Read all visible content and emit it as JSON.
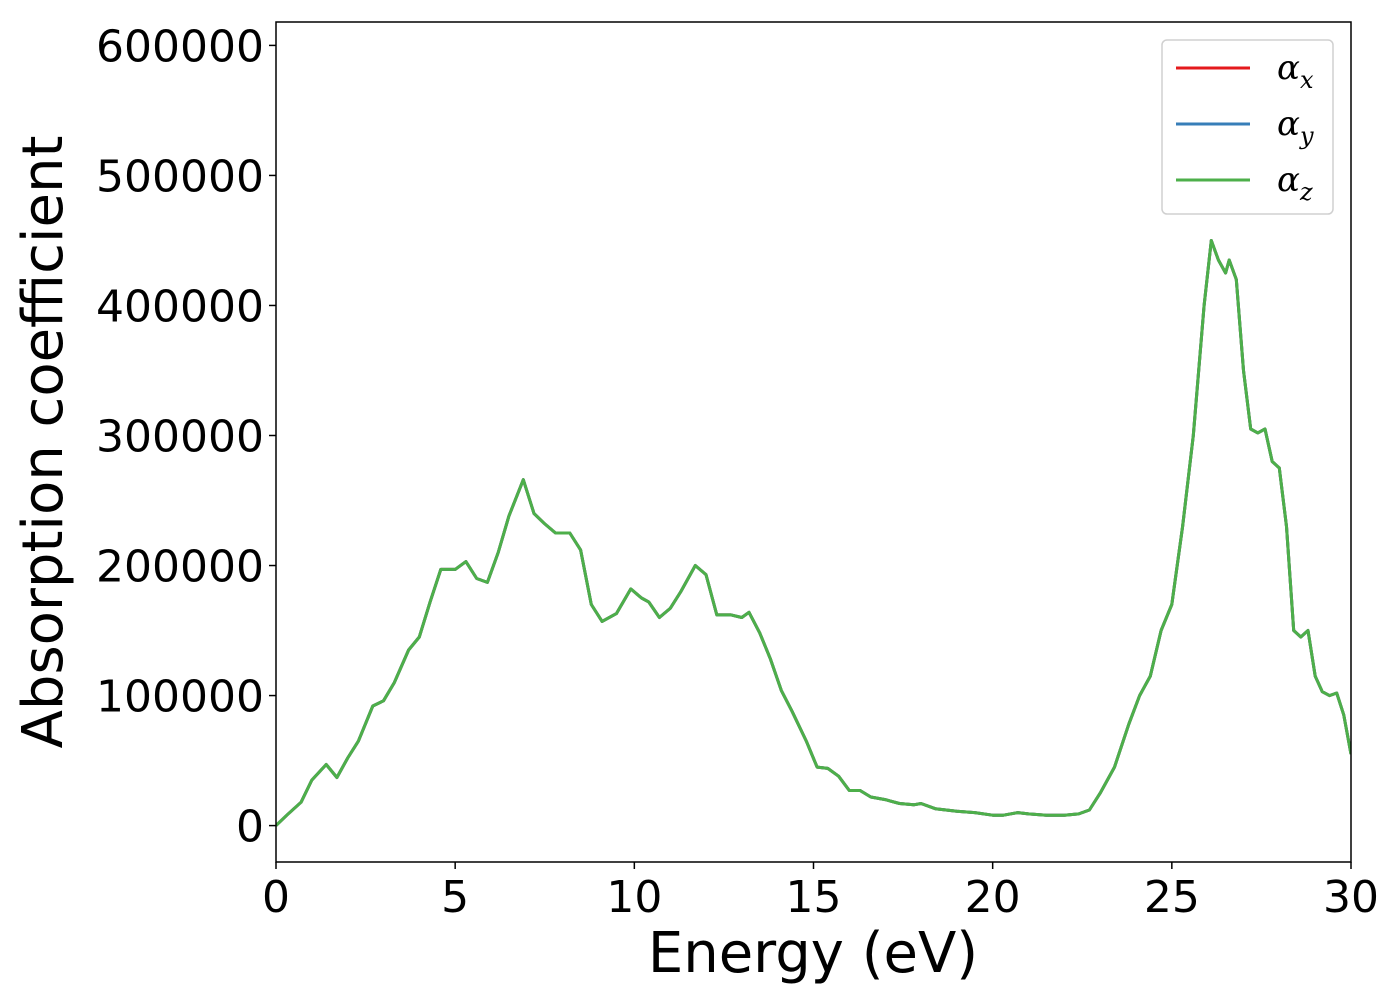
{
  "chart_data": {
    "type": "line",
    "title": "",
    "xlabel": "Energy (eV)",
    "ylabel": "Absorption coefficient",
    "xlim": [
      0,
      30
    ],
    "ylim": [
      -28000,
      618000
    ],
    "xticks": [
      0,
      5,
      10,
      15,
      20,
      25,
      30
    ],
    "yticks": [
      0,
      100000,
      200000,
      300000,
      400000,
      500000,
      600000
    ],
    "grid": false,
    "legend_position": "top-right",
    "series": [
      {
        "name": "α_x",
        "sym": "α",
        "sub": "x",
        "color": "#e41a1c",
        "x": [
          0,
          0.3,
          0.7,
          1.0,
          1.4,
          1.7,
          2.0,
          2.3,
          2.7,
          3.0,
          3.3,
          3.7,
          4.0,
          4.3,
          4.6,
          5.0,
          5.3,
          5.6,
          5.9,
          6.2,
          6.5,
          6.9,
          7.2,
          7.5,
          7.8,
          8.2,
          8.5,
          8.8,
          9.1,
          9.5,
          9.9,
          10.2,
          10.4,
          10.7,
          11.0,
          11.3,
          11.7,
          12.0,
          12.3,
          12.7,
          13.0,
          13.2,
          13.5,
          13.8,
          14.1,
          14.4,
          14.8,
          15.1,
          15.4,
          15.7,
          16.0,
          16.3,
          16.6,
          17.0,
          17.4,
          17.8,
          18.0,
          18.4,
          19.0,
          19.5,
          20.0,
          20.3,
          20.7,
          21.0,
          21.5,
          22.0,
          22.4,
          22.7,
          23.0,
          23.4,
          23.8,
          24.1,
          24.4,
          24.7,
          25.0,
          25.3,
          25.6,
          25.9,
          26.1,
          26.3,
          26.5,
          26.6,
          26.8,
          27.0,
          27.2,
          27.4,
          27.6,
          27.8,
          28.0,
          28.2,
          28.4,
          28.6,
          28.8,
          29.0,
          29.2,
          29.4,
          29.6,
          29.8,
          30.0
        ],
        "y": [
          0,
          8000,
          18000,
          35000,
          47000,
          37000,
          52000,
          65000,
          92000,
          96000,
          110000,
          135000,
          145000,
          172000,
          197000,
          197000,
          203000,
          190000,
          187000,
          210000,
          238000,
          266000,
          240000,
          232000,
          225000,
          225000,
          212000,
          170000,
          157000,
          163000,
          182000,
          175000,
          172000,
          160000,
          167000,
          180000,
          200000,
          193000,
          162000,
          162000,
          160000,
          164000,
          148000,
          128000,
          104000,
          88000,
          65000,
          45000,
          44000,
          38000,
          27000,
          27000,
          22000,
          20000,
          17000,
          16000,
          17000,
          13000,
          11000,
          10000,
          8000,
          8000,
          10000,
          9000,
          8000,
          8000,
          9000,
          12000,
          25000,
          45000,
          78000,
          100000,
          115000,
          150000,
          170000,
          230000,
          300000,
          400000,
          450000,
          435000,
          425000,
          435000,
          420000,
          350000,
          305000,
          302000,
          305000,
          280000,
          275000,
          230000,
          150000,
          145000,
          150000,
          115000,
          103000,
          100000,
          102000,
          85000,
          55000
        ]
      },
      {
        "name": "α_y",
        "sym": "α",
        "sub": "y",
        "color": "#377eb8",
        "x": [
          0,
          0.3,
          0.7,
          1.0,
          1.4,
          1.7,
          2.0,
          2.3,
          2.7,
          3.0,
          3.3,
          3.7,
          4.0,
          4.3,
          4.6,
          5.0,
          5.3,
          5.6,
          5.9,
          6.2,
          6.5,
          6.9,
          7.2,
          7.5,
          7.8,
          8.2,
          8.5,
          8.8,
          9.1,
          9.5,
          9.9,
          10.2,
          10.4,
          10.7,
          11.0,
          11.3,
          11.7,
          12.0,
          12.3,
          12.7,
          13.0,
          13.2,
          13.5,
          13.8,
          14.1,
          14.4,
          14.8,
          15.1,
          15.4,
          15.7,
          16.0,
          16.3,
          16.6,
          17.0,
          17.4,
          17.8,
          18.0,
          18.4,
          19.0,
          19.5,
          20.0,
          20.3,
          20.7,
          21.0,
          21.5,
          22.0,
          22.4,
          22.7,
          23.0,
          23.4,
          23.8,
          24.1,
          24.4,
          24.7,
          25.0,
          25.3,
          25.6,
          25.9,
          26.1,
          26.3,
          26.5,
          26.6,
          26.8,
          27.0,
          27.2,
          27.4,
          27.6,
          27.8,
          28.0,
          28.2,
          28.4,
          28.6,
          28.8,
          29.0,
          29.2,
          29.4,
          29.6,
          29.8,
          30.0
        ],
        "y": [
          0,
          8000,
          18000,
          35000,
          47000,
          37000,
          52000,
          65000,
          92000,
          96000,
          110000,
          135000,
          145000,
          172000,
          197000,
          197000,
          203000,
          190000,
          187000,
          210000,
          238000,
          266000,
          240000,
          232000,
          225000,
          225000,
          212000,
          170000,
          157000,
          163000,
          182000,
          175000,
          172000,
          160000,
          167000,
          180000,
          200000,
          193000,
          162000,
          162000,
          160000,
          164000,
          148000,
          128000,
          104000,
          88000,
          65000,
          45000,
          44000,
          38000,
          27000,
          27000,
          22000,
          20000,
          17000,
          16000,
          17000,
          13000,
          11000,
          10000,
          8000,
          8000,
          10000,
          9000,
          8000,
          8000,
          9000,
          12000,
          25000,
          45000,
          78000,
          100000,
          115000,
          150000,
          170000,
          230000,
          300000,
          400000,
          450000,
          435000,
          425000,
          435000,
          420000,
          350000,
          305000,
          302000,
          305000,
          280000,
          275000,
          230000,
          150000,
          145000,
          150000,
          115000,
          103000,
          100000,
          102000,
          85000,
          55000
        ]
      },
      {
        "name": "α_z",
        "sym": "α",
        "sub": "z",
        "color": "#4daf4a",
        "x": [
          0,
          0.3,
          0.7,
          1.0,
          1.4,
          1.7,
          2.0,
          2.3,
          2.7,
          3.0,
          3.3,
          3.7,
          4.0,
          4.3,
          4.6,
          5.0,
          5.3,
          5.6,
          5.9,
          6.2,
          6.5,
          6.9,
          7.2,
          7.5,
          7.8,
          8.2,
          8.5,
          8.8,
          9.1,
          9.5,
          9.9,
          10.2,
          10.4,
          10.7,
          11.0,
          11.3,
          11.7,
          12.0,
          12.3,
          12.7,
          13.0,
          13.2,
          13.5,
          13.8,
          14.1,
          14.4,
          14.8,
          15.1,
          15.4,
          15.7,
          16.0,
          16.3,
          16.6,
          17.0,
          17.4,
          17.8,
          18.0,
          18.4,
          19.0,
          19.5,
          20.0,
          20.3,
          20.7,
          21.0,
          21.5,
          22.0,
          22.4,
          22.7,
          23.0,
          23.4,
          23.8,
          24.1,
          24.4,
          24.7,
          25.0,
          25.3,
          25.6,
          25.9,
          26.1,
          26.3,
          26.5,
          26.6,
          26.8,
          27.0,
          27.2,
          27.4,
          27.6,
          27.8,
          28.0,
          28.2,
          28.4,
          28.6,
          28.8,
          29.0,
          29.2,
          29.4,
          29.6,
          29.8,
          30.0
        ],
        "y": [
          0,
          8000,
          18000,
          35000,
          47000,
          37000,
          52000,
          65000,
          92000,
          96000,
          110000,
          135000,
          145000,
          172000,
          197000,
          197000,
          203000,
          190000,
          187000,
          210000,
          238000,
          266000,
          240000,
          232000,
          225000,
          225000,
          212000,
          170000,
          157000,
          163000,
          182000,
          175000,
          172000,
          160000,
          167000,
          180000,
          200000,
          193000,
          162000,
          162000,
          160000,
          164000,
          148000,
          128000,
          104000,
          88000,
          65000,
          45000,
          44000,
          38000,
          27000,
          27000,
          22000,
          20000,
          17000,
          16000,
          17000,
          13000,
          11000,
          10000,
          8000,
          8000,
          10000,
          9000,
          8000,
          8000,
          9000,
          12000,
          25000,
          45000,
          78000,
          100000,
          115000,
          150000,
          170000,
          230000,
          300000,
          400000,
          450000,
          435000,
          425000,
          435000,
          420000,
          350000,
          305000,
          302000,
          305000,
          280000,
          275000,
          230000,
          150000,
          145000,
          150000,
          115000,
          103000,
          100000,
          102000,
          85000,
          55000
        ]
      }
    ]
  }
}
